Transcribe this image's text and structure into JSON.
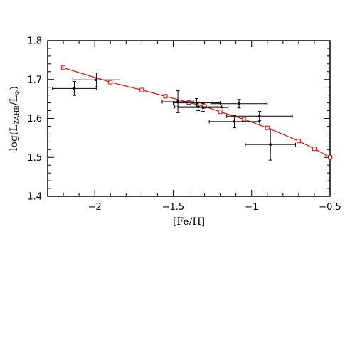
{
  "chart_data": {
    "type": "scatter",
    "xlabel": "[Fe/H]",
    "ylabel": {
      "prefix": "log(L",
      "subscript": "ZAHB",
      "middle": "/L",
      "sun_subscript": "⊙",
      "suffix": ")"
    },
    "xlim": [
      -2.3,
      -0.5
    ],
    "ylim": [
      1.4,
      1.8
    ],
    "x_ticks": [
      {
        "value": -2.0,
        "label": "−2"
      },
      {
        "value": -1.5,
        "label": "−1.5"
      },
      {
        "value": -1.0,
        "label": "−1"
      },
      {
        "value": -0.5,
        "label": "−0.5"
      }
    ],
    "y_ticks": [
      {
        "value": 1.4,
        "label": "1.4"
      },
      {
        "value": 1.5,
        "label": "1.5"
      },
      {
        "value": 1.6,
        "label": "1.6"
      },
      {
        "value": 1.7,
        "label": "1.7"
      },
      {
        "value": 1.8,
        "label": "1.8"
      }
    ],
    "grid": false,
    "legend": "none",
    "series": [
      {
        "kind": "observed",
        "marker": "filled-dot",
        "color": "#000000",
        "points": [
          {
            "x": -2.13,
            "y": 1.677,
            "xerr": 0.14,
            "yerr": 0.018
          },
          {
            "x": -1.99,
            "y": 1.699,
            "xerr": 0.15,
            "yerr": 0.018
          },
          {
            "x": -1.47,
            "y": 1.643,
            "xerr": 0.1,
            "yerr": 0.028
          },
          {
            "x": -1.35,
            "y": 1.64,
            "xerr": 0.15,
            "yerr": 0.011
          },
          {
            "x": -1.34,
            "y": 1.63,
            "xerr": 0.15,
            "yerr": 0.01
          },
          {
            "x": -1.31,
            "y": 1.628,
            "xerr": 0.16,
            "yerr": 0.01
          },
          {
            "x": -1.08,
            "y": 1.638,
            "xerr": 0.18,
            "yerr": 0.011
          },
          {
            "x": -1.11,
            "y": 1.592,
            "xerr": 0.16,
            "yerr": 0.016
          },
          {
            "x": -0.95,
            "y": 1.606,
            "xerr": 0.21,
            "yerr": 0.012
          },
          {
            "x": -0.88,
            "y": 1.533,
            "xerr": 0.16,
            "yerr": 0.04
          }
        ]
      },
      {
        "kind": "model",
        "marker": "open-square",
        "color": "#ff0000",
        "line": true,
        "points": [
          {
            "x": -2.2,
            "y": 1.73
          },
          {
            "x": -1.9,
            "y": 1.693
          },
          {
            "x": -1.7,
            "y": 1.673
          },
          {
            "x": -1.55,
            "y": 1.657
          },
          {
            "x": -1.4,
            "y": 1.641
          },
          {
            "x": -1.3,
            "y": 1.631
          },
          {
            "x": -1.2,
            "y": 1.617
          },
          {
            "x": -1.05,
            "y": 1.598
          },
          {
            "x": -0.9,
            "y": 1.576
          },
          {
            "x": -0.7,
            "y": 1.542
          },
          {
            "x": -0.6,
            "y": 1.522
          },
          {
            "x": -0.5,
            "y": 1.5
          }
        ]
      }
    ]
  }
}
